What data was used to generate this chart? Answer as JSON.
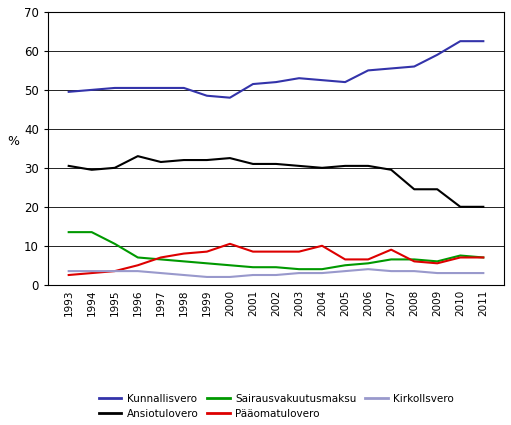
{
  "years": [
    1993,
    1994,
    1995,
    1996,
    1997,
    1998,
    1999,
    2000,
    2001,
    2002,
    2003,
    2004,
    2005,
    2006,
    2007,
    2008,
    2009,
    2010,
    2011
  ],
  "kunnallisvero": [
    49.5,
    50.0,
    50.5,
    50.5,
    50.5,
    50.5,
    48.5,
    48.0,
    51.5,
    52.0,
    53.0,
    52.5,
    52.0,
    55.0,
    55.5,
    56.0,
    59.0,
    62.5,
    62.5
  ],
  "ansiotulovero": [
    30.5,
    29.5,
    30.0,
    33.0,
    31.5,
    32.0,
    32.0,
    32.5,
    31.0,
    31.0,
    30.5,
    30.0,
    30.5,
    30.5,
    29.5,
    24.5,
    24.5,
    20.0,
    20.0
  ],
  "sairausvakuutusmaksu": [
    13.5,
    13.5,
    10.5,
    7.0,
    6.5,
    6.0,
    5.5,
    5.0,
    4.5,
    4.5,
    4.0,
    4.0,
    5.0,
    5.5,
    6.5,
    6.5,
    6.0,
    7.5,
    7.0
  ],
  "paaomatulovero": [
    2.5,
    3.0,
    3.5,
    5.0,
    7.0,
    8.0,
    8.5,
    10.5,
    8.5,
    8.5,
    8.5,
    10.0,
    6.5,
    6.5,
    9.0,
    6.0,
    5.5,
    7.0,
    7.0
  ],
  "kirkollsvero": [
    3.5,
    3.5,
    3.5,
    3.5,
    3.0,
    2.5,
    2.0,
    2.0,
    2.5,
    2.5,
    3.0,
    3.0,
    3.5,
    4.0,
    3.5,
    3.5,
    3.0,
    3.0,
    3.0
  ],
  "colors": {
    "kunnallisvero": "#3333aa",
    "ansiotulovero": "#000000",
    "sairausvakuutusmaksu": "#009900",
    "paaomatulovero": "#dd0000",
    "kirkollsvero": "#9999cc"
  },
  "ylabel": "%",
  "ylim": [
    0,
    70
  ],
  "yticks": [
    0,
    10,
    20,
    30,
    40,
    50,
    60,
    70
  ],
  "legend_labels": [
    "Kunnallisvero",
    "Ansiotulovero",
    "Sairausvakuutusmaksu",
    "Pääomatulovero",
    "Kirkollsvero"
  ],
  "background_color": "#ffffff",
  "grid_color": "#000000"
}
